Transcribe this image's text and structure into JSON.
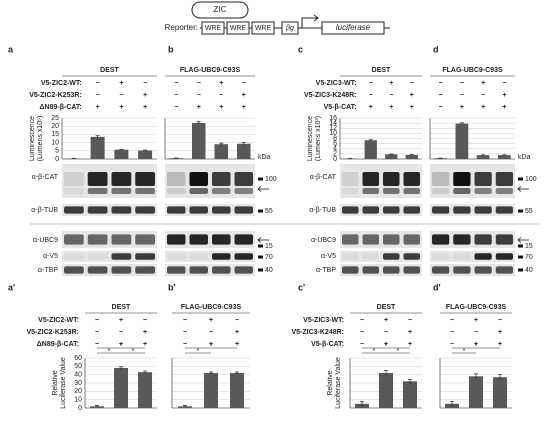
{
  "diagram": {
    "protein": "ZIC",
    "label": "Reporter:",
    "elements": [
      "WRE",
      "WRE",
      "WRE",
      "βg",
      "luciferase"
    ]
  },
  "blots": {
    "labels_a": [
      "α-β-CAT",
      "α-β-TUB",
      "α-UBC9",
      "α-V5",
      "α-TBP"
    ],
    "labels_c": [
      "α-β-CAT",
      "α-β-TUB",
      "α-UBC9",
      "α-V5",
      "α-TBP"
    ],
    "markers": [
      "kDa",
      "100",
      "55",
      "15",
      "70",
      "40"
    ]
  },
  "chart_data": [
    {
      "type": "bar",
      "panel": "a",
      "title": "DEST",
      "conditions": [
        {
          "label": "V5-ZIC2-WT:",
          "signs": [
            null,
            "−",
            "+",
            "−"
          ]
        },
        {
          "label": "V5-ZIC2-K253R:",
          "signs": [
            null,
            "−",
            "−",
            "+"
          ]
        },
        {
          "label": "ΔN89-β-CAT:",
          "signs": [
            null,
            "+",
            "+",
            "+"
          ]
        }
      ],
      "ylabel": [
        "Luminescence",
        "(Lumens x10⁵)"
      ],
      "ylim": [
        0,
        25
      ],
      "yticks": [
        0,
        5,
        10,
        15,
        20,
        25
      ],
      "tick_labels": true,
      "grid": true,
      "color": "#595959",
      "values": [
        0.3,
        13.5,
        5.7,
        5.2
      ],
      "errors": [
        0.1,
        0.8,
        0.2,
        0.2
      ]
    },
    {
      "type": "bar",
      "panel": "b",
      "title": "FLAG-UBC9-C93S",
      "conditions": [
        {
          "signs": [
            "−",
            "−",
            "+",
            "−"
          ]
        },
        {
          "signs": [
            "−",
            "−",
            "−",
            "+"
          ]
        },
        {
          "signs": [
            "−",
            "+",
            "+",
            "+"
          ]
        }
      ],
      "ylim": [
        0,
        25
      ],
      "yticks": [
        0,
        5,
        10,
        15,
        20,
        25
      ],
      "tick_labels": false,
      "grid": true,
      "color": "#595959",
      "values": [
        0.5,
        22,
        9,
        9.3
      ],
      "errors": [
        0.1,
        0.7,
        0.7,
        0.7
      ]
    },
    {
      "type": "bar",
      "panel": "c",
      "title": "DEST",
      "conditions": [
        {
          "label": "V5-ZIC3-WT:",
          "signs": [
            null,
            "−",
            "+",
            "−"
          ]
        },
        {
          "label": "V5-ZIC3-K248R:",
          "signs": [
            null,
            "−",
            "−",
            "+"
          ]
        },
        {
          "label": "V5-β-CAT:",
          "signs": [
            null,
            "+",
            "+",
            "+"
          ]
        }
      ],
      "ylabel": [
        "Luminescence",
        "(Lumens x10³)"
      ],
      "ylim": [
        0,
        16
      ],
      "yticks": [
        0,
        2,
        4,
        6,
        8,
        10,
        12,
        14,
        16
      ],
      "tick_labels": true,
      "grid": true,
      "color": "#595959",
      "values": [
        0.2,
        7.3,
        1.8,
        1.6
      ],
      "errors": [
        0.05,
        0.2,
        0.1,
        0.1
      ]
    },
    {
      "type": "bar",
      "panel": "d",
      "title": "FLAG-UBC9-C93S",
      "conditions": [
        {
          "signs": [
            "−",
            "−",
            "+",
            "−"
          ]
        },
        {
          "signs": [
            "−",
            "−",
            "−",
            "+"
          ]
        },
        {
          "signs": [
            "−",
            "+",
            "+",
            "+"
          ]
        }
      ],
      "ylim": [
        0,
        16
      ],
      "yticks": [
        0,
        2,
        4,
        6,
        8,
        10,
        12,
        14,
        16
      ],
      "tick_labels": false,
      "grid": true,
      "color": "#595959",
      "values": [
        0.3,
        13.8,
        1.5,
        1.5
      ],
      "errors": [
        0.05,
        0.3,
        0.1,
        0.1
      ]
    },
    {
      "type": "bar",
      "panel": "a'",
      "title": "DEST",
      "conditions": [
        {
          "label": "V5-ZIC2-WT:",
          "signs": [
            "−",
            "+",
            "−"
          ]
        },
        {
          "label": "V5-ZIC2-K253R:",
          "signs": [
            "−",
            "−",
            "+"
          ]
        },
        {
          "label": "ΔN89-β-CAT:",
          "signs": [
            "−",
            "+",
            "+"
          ]
        }
      ],
      "ylabel": [
        "Relative",
        "Luciferase Value"
      ],
      "ylim": [
        0,
        60
      ],
      "yticks": [
        0,
        10,
        20,
        30,
        40,
        50,
        60
      ],
      "tick_labels": true,
      "grid": true,
      "color": "#595959",
      "values": [
        2,
        48,
        43
      ],
      "errors": [
        1,
        1.5,
        1.5
      ],
      "annotations": [
        "*",
        "*",
        "*"
      ]
    },
    {
      "type": "bar",
      "panel": "b'",
      "title": "FLAG-UBC9-C93S",
      "conditions": [
        {
          "signs": [
            "−",
            "+",
            "−"
          ]
        },
        {
          "signs": [
            "−",
            "−",
            "+"
          ]
        },
        {
          "signs": [
            "−",
            "+",
            "+"
          ]
        }
      ],
      "ylim": [
        0,
        60
      ],
      "yticks": [
        0,
        10,
        20,
        30,
        40,
        50,
        60
      ],
      "tick_labels": false,
      "grid": true,
      "color": "#595959",
      "values": [
        2,
        42,
        42
      ],
      "errors": [
        1,
        1.2,
        1.2
      ],
      "annotations": [
        "*",
        "*"
      ]
    },
    {
      "type": "bar",
      "panel": "c'",
      "title": "DEST",
      "conditions": [
        {
          "label": "V5-ZIC3-WT:",
          "signs": [
            "−",
            "+",
            "−"
          ]
        },
        {
          "label": "V5-ZIC3-K248R:",
          "signs": [
            "−",
            "−",
            "+"
          ]
        },
        {
          "label": "V5-β-CAT:",
          "signs": [
            "−",
            "+",
            "+"
          ]
        }
      ],
      "ylabel": [
        "Relative",
        "Luciferase Value"
      ],
      "ylim": [
        0,
        30
      ],
      "yticks": [
        0,
        5,
        10,
        15,
        20,
        25,
        30
      ],
      "tick_labels": false,
      "grid": true,
      "color": "#595959",
      "values": [
        2.5,
        21,
        16
      ],
      "errors": [
        1.5,
        1.5,
        1.2
      ],
      "annotations": [
        "*",
        "*",
        "*"
      ]
    },
    {
      "type": "bar",
      "panel": "d'",
      "title": "FLAG-UBC9-C93S",
      "conditions": [
        {
          "signs": [
            "−",
            "+",
            "−"
          ]
        },
        {
          "signs": [
            "−",
            "−",
            "+"
          ]
        },
        {
          "signs": [
            "−",
            "+",
            "+"
          ]
        }
      ],
      "ylim": [
        0,
        30
      ],
      "yticks": [
        0,
        5,
        10,
        15,
        20,
        25,
        30
      ],
      "tick_labels": false,
      "grid": true,
      "color": "#595959",
      "values": [
        2.5,
        19,
        18.5
      ],
      "errors": [
        1.5,
        1.5,
        1.5
      ],
      "annotations": [
        "*",
        "*"
      ]
    }
  ]
}
